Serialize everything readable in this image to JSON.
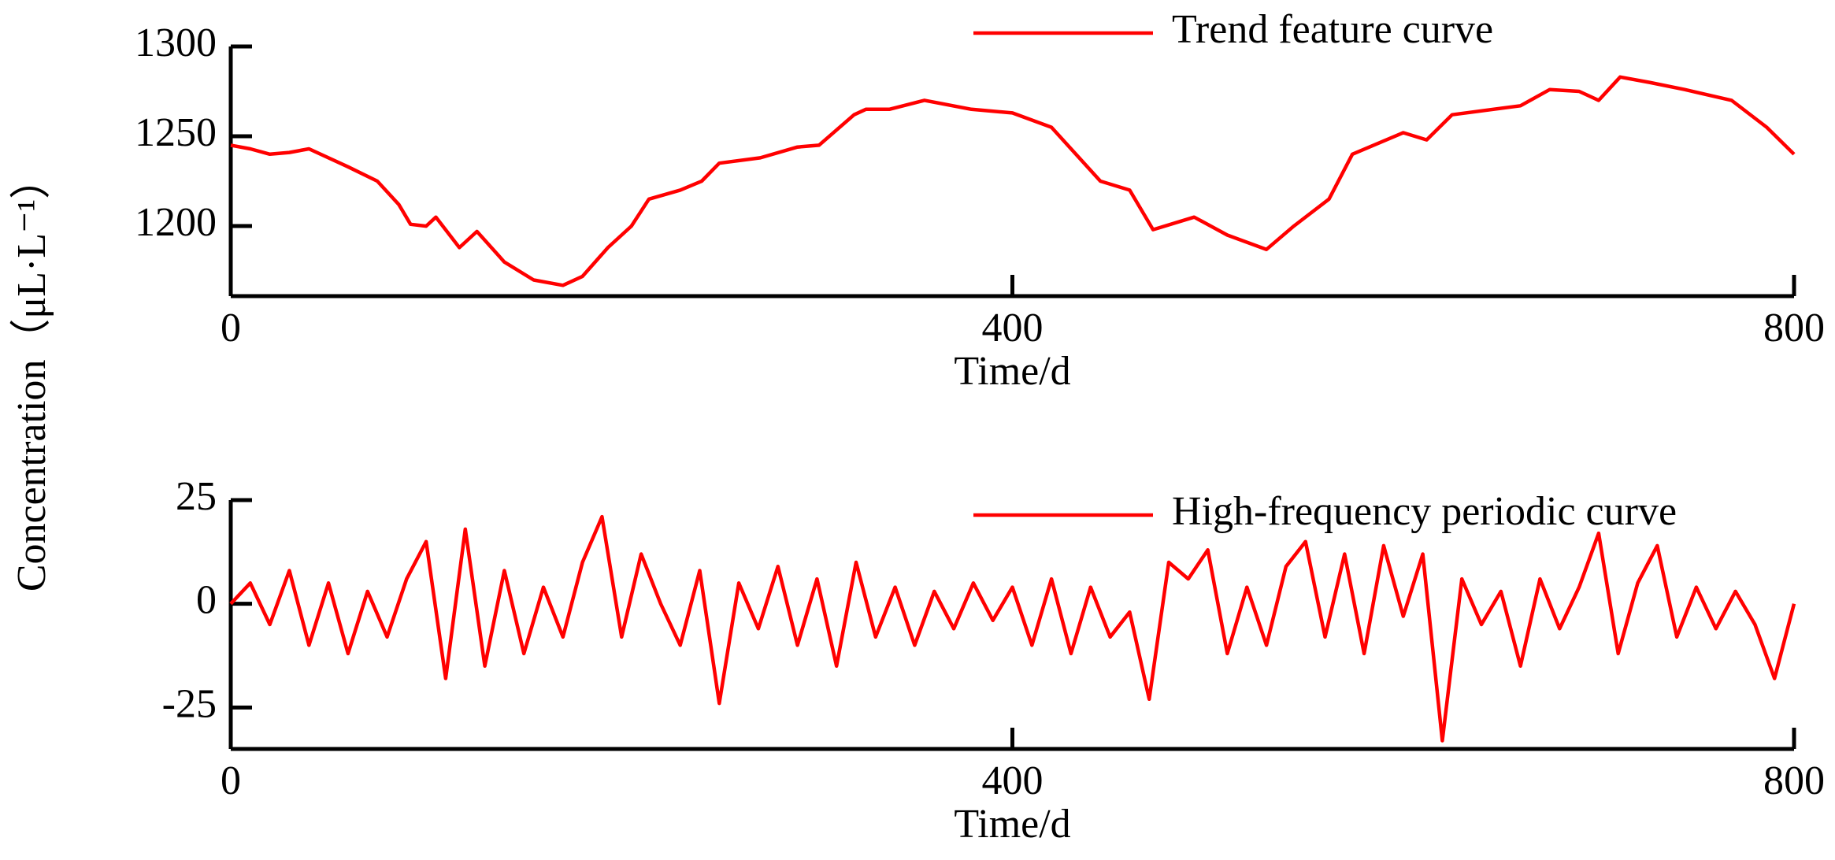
{
  "chart_data": [
    {
      "type": "line",
      "ylabel": "Concentration（μL·L⁻¹）",
      "xlabel": "Time/d",
      "legend": "top-right",
      "xlim": [
        0,
        800
      ],
      "xticks": [
        0,
        400,
        800
      ],
      "ylim": [
        1161,
        1300
      ],
      "yticks": [
        1300,
        1250,
        1200
      ],
      "x": [
        0,
        10,
        20,
        30,
        40,
        60,
        75,
        86,
        92,
        100,
        105,
        117,
        126,
        140,
        155,
        170,
        180,
        193,
        205,
        214,
        230,
        241,
        250,
        271,
        290,
        301,
        319,
        325,
        337,
        355,
        379,
        400,
        420,
        445,
        460,
        472,
        493,
        510,
        530,
        544,
        562,
        574,
        600,
        612,
        625,
        660,
        675,
        690,
        700,
        711,
        726,
        744,
        768,
        786,
        800
      ],
      "series": [
        {
          "name": "Trend feature curve",
          "color": "#ff0000",
          "values": [
            1245,
            1243,
            1240,
            1241,
            1243,
            1233,
            1225,
            1212,
            1201,
            1200,
            1205,
            1188,
            1197,
            1180,
            1170,
            1167,
            1172,
            1188,
            1200,
            1215,
            1220,
            1225,
            1235,
            1238,
            1244,
            1245,
            1262,
            1265,
            1265,
            1270,
            1265,
            1263,
            1255,
            1225,
            1220,
            1198,
            1205,
            1195,
            1187,
            1200,
            1215,
            1240,
            1252,
            1248,
            1262,
            1267,
            1276,
            1275,
            1270,
            1283,
            1280,
            1276,
            1270,
            1255,
            1240
          ]
        }
      ]
    },
    {
      "type": "line",
      "xlabel": "Time/d",
      "legend": "top-right",
      "xlim": [
        0,
        800
      ],
      "xticks": [
        0,
        400,
        800
      ],
      "ylim": [
        -35,
        25
      ],
      "yticks": [
        25,
        0,
        -25
      ],
      "x": [
        0,
        10,
        20,
        30,
        40,
        50,
        60,
        70,
        80,
        90,
        100,
        110,
        120,
        130,
        140,
        150,
        160,
        170,
        180,
        190,
        200,
        210,
        220,
        230,
        240,
        250,
        260,
        270,
        280,
        290,
        300,
        310,
        320,
        330,
        340,
        350,
        360,
        370,
        380,
        390,
        400,
        410,
        420,
        430,
        440,
        450,
        460,
        470,
        480,
        490,
        500,
        510,
        520,
        530,
        540,
        550,
        560,
        570,
        580,
        590,
        600,
        610,
        620,
        630,
        640,
        650,
        660,
        670,
        680,
        690,
        700,
        710,
        720,
        730,
        740,
        750,
        760,
        770,
        780,
        790,
        800
      ],
      "series": [
        {
          "name": "High-frequency periodic curve",
          "color": "#ff0000",
          "values": [
            0,
            5,
            -5,
            8,
            -10,
            5,
            -12,
            3,
            -8,
            6,
            15,
            -18,
            18,
            -15,
            8,
            -12,
            4,
            -8,
            10,
            21,
            -8,
            12,
            0,
            -10,
            8,
            -24,
            5,
            -6,
            9,
            -10,
            6,
            -15,
            10,
            -8,
            4,
            -10,
            3,
            -6,
            5,
            -4,
            4,
            -10,
            6,
            -12,
            4,
            -8,
            -2,
            -23,
            10,
            6,
            13,
            -12,
            4,
            -10,
            9,
            15,
            -8,
            12,
            -12,
            14,
            -3,
            12,
            -33,
            6,
            -5,
            3,
            -15,
            6,
            -6,
            4,
            17,
            -12,
            5,
            14,
            -8,
            4,
            -6,
            3,
            -5,
            -18,
            0
          ]
        }
      ]
    }
  ]
}
